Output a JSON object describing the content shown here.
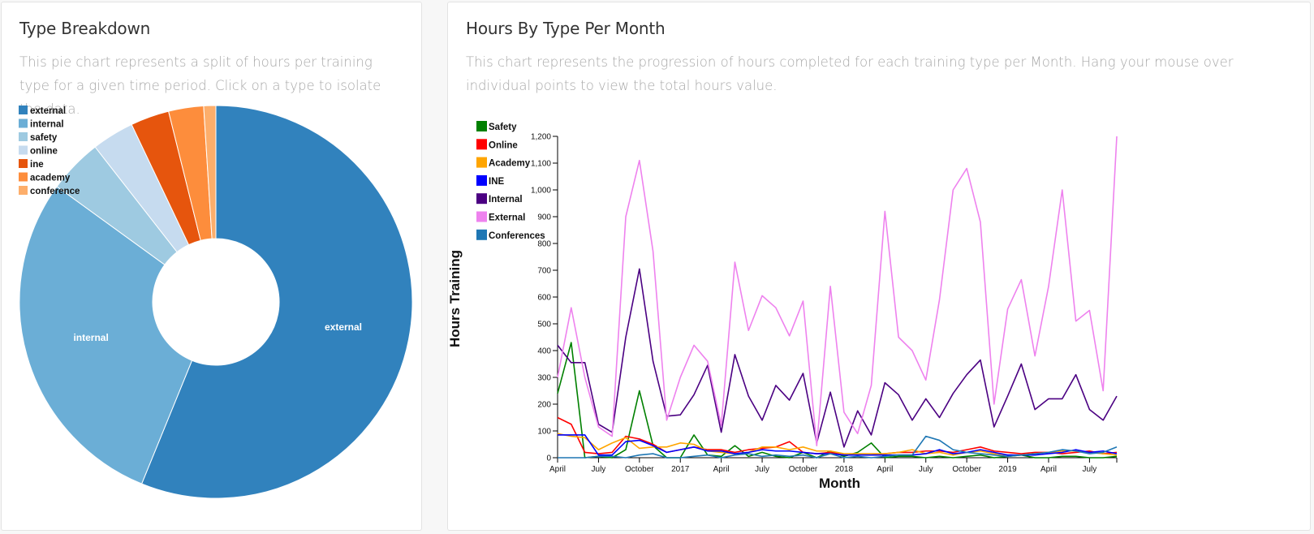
{
  "pie_panel": {
    "title": "Type Breakdown",
    "description": "This pie chart represents a split of hours per training type for a given time period. Click on a type to isolate the data."
  },
  "line_panel": {
    "title": "Hours By Type Per Month",
    "description": "This chart represents the progression of hours completed for each training type per Month. Hang your mouse over individual points to view the total hours value."
  },
  "chart_data": [
    {
      "type": "pie",
      "donut": true,
      "legend_placement": "top-left",
      "slices": [
        {
          "label": "external",
          "value": 56.5,
          "color": "#3182bd",
          "show_label": true
        },
        {
          "label": "internal",
          "value": 29.0,
          "color": "#6baed6",
          "show_label": true
        },
        {
          "label": "safety",
          "value": 4.5,
          "color": "#9ecae1",
          "show_label": false
        },
        {
          "label": "online",
          "value": 3.5,
          "color": "#c6dbef",
          "show_label": false
        },
        {
          "label": "ine",
          "value": 3.2,
          "color": "#e6550d",
          "show_label": false
        },
        {
          "label": "academy",
          "value": 2.9,
          "color": "#fd8d3c",
          "show_label": false
        },
        {
          "label": "conference",
          "value": 1.0,
          "color": "#fdae6b",
          "show_label": false
        }
      ]
    },
    {
      "type": "line",
      "xlabel": "Month",
      "ylabel": "Hours Training",
      "ylim": [
        0,
        1200
      ],
      "yticks": [
        0,
        100,
        200,
        300,
        400,
        500,
        600,
        700,
        800,
        900,
        1000,
        1100,
        1200
      ],
      "x_start": "2016-04",
      "x_end": "2019-09",
      "xtick_labels": [
        {
          "x": "2016-04",
          "label": "April"
        },
        {
          "x": "2016-07",
          "label": "July"
        },
        {
          "x": "2016-10",
          "label": "October"
        },
        {
          "x": "2017-01",
          "label": "2017"
        },
        {
          "x": "2017-04",
          "label": "April"
        },
        {
          "x": "2017-07",
          "label": "July"
        },
        {
          "x": "2017-10",
          "label": "October"
        },
        {
          "x": "2018-01",
          "label": "2018"
        },
        {
          "x": "2018-04",
          "label": "April"
        },
        {
          "x": "2018-07",
          "label": "July"
        },
        {
          "x": "2018-10",
          "label": "October"
        },
        {
          "x": "2019-01",
          "label": "2019"
        },
        {
          "x": "2019-04",
          "label": "April"
        },
        {
          "x": "2019-07",
          "label": "July"
        }
      ],
      "legend_placement": "top-left",
      "series": [
        {
          "name": "Safety",
          "color": "#008000",
          "values": [
            240,
            430,
            0,
            5,
            0,
            30,
            250,
            45,
            0,
            0,
            85,
            10,
            5,
            45,
            5,
            20,
            5,
            0,
            20,
            0,
            25,
            5,
            20,
            55,
            0,
            5,
            5,
            0,
            5,
            0,
            5,
            10,
            0,
            5,
            10,
            0,
            0,
            5,
            5,
            0,
            0,
            5
          ]
        },
        {
          "name": "Online",
          "color": "#ff0000",
          "values": [
            150,
            125,
            20,
            15,
            20,
            80,
            70,
            50,
            20,
            30,
            40,
            30,
            30,
            20,
            30,
            35,
            40,
            60,
            20,
            15,
            20,
            10,
            10,
            10,
            15,
            20,
            20,
            25,
            25,
            20,
            30,
            40,
            25,
            20,
            15,
            20,
            20,
            15,
            20,
            25,
            15,
            20
          ]
        },
        {
          "name": "Academy",
          "color": "#ffa500",
          "values": [
            90,
            80,
            75,
            30,
            55,
            75,
            35,
            40,
            40,
            55,
            50,
            25,
            20,
            15,
            20,
            40,
            40,
            30,
            40,
            25,
            25,
            15,
            15,
            15,
            15,
            20,
            30,
            15,
            20,
            10,
            20,
            25,
            15,
            10,
            10,
            15,
            20,
            25,
            25,
            20,
            15,
            10
          ]
        },
        {
          "name": "INE",
          "color": "#0000ff",
          "values": [
            85,
            85,
            85,
            10,
            10,
            60,
            65,
            45,
            20,
            30,
            40,
            25,
            25,
            15,
            20,
            30,
            25,
            25,
            20,
            15,
            15,
            10,
            10,
            10,
            10,
            10,
            10,
            15,
            30,
            15,
            20,
            30,
            20,
            10,
            10,
            10,
            15,
            20,
            30,
            20,
            25,
            15
          ]
        },
        {
          "name": "Internal",
          "color": "#4b0082",
          "values": [
            420,
            355,
            355,
            125,
            95,
            450,
            705,
            360,
            155,
            160,
            235,
            345,
            95,
            385,
            230,
            140,
            270,
            215,
            315,
            55,
            245,
            40,
            175,
            85,
            280,
            235,
            140,
            220,
            150,
            240,
            310,
            365,
            115,
            230,
            350,
            180,
            220,
            220,
            310,
            180,
            140,
            230
          ]
        },
        {
          "name": "External",
          "color": "#ee82ee",
          "values": [
            300,
            560,
            300,
            115,
            80,
            900,
            1110,
            770,
            140,
            300,
            420,
            360,
            120,
            730,
            475,
            605,
            560,
            455,
            585,
            45,
            640,
            170,
            90,
            270,
            920,
            450,
            400,
            290,
            590,
            1000,
            1080,
            880,
            200,
            555,
            665,
            380,
            640,
            1000,
            510,
            550,
            250,
            1200
          ]
        },
        {
          "name": "Conferences",
          "color": "#1f77b4",
          "values": [
            0,
            0,
            0,
            5,
            5,
            0,
            10,
            15,
            0,
            0,
            5,
            10,
            0,
            10,
            15,
            5,
            10,
            5,
            10,
            0,
            15,
            0,
            5,
            0,
            5,
            10,
            10,
            80,
            65,
            30,
            20,
            15,
            10,
            5,
            10,
            15,
            20,
            30,
            25,
            15,
            20,
            40
          ]
        }
      ]
    }
  ]
}
